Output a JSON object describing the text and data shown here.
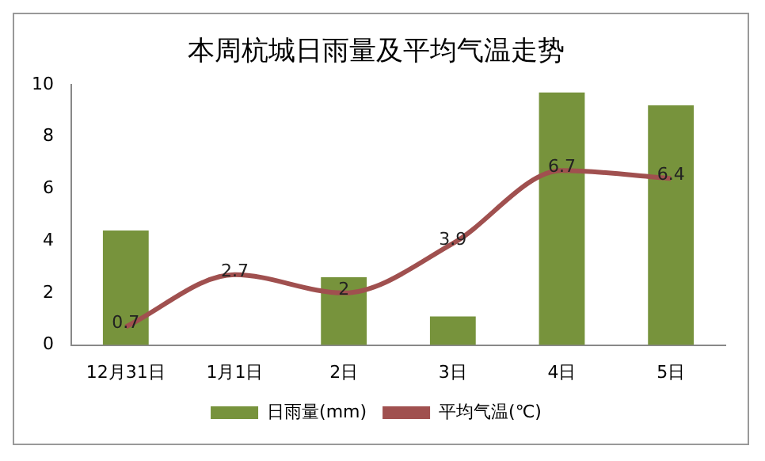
{
  "chart_data": {
    "type": "bar",
    "title": "本周杭城日雨量及平均气温走势",
    "categories": [
      "12月31日",
      "1月1日",
      "2日",
      "3日",
      "4日",
      "5日"
    ],
    "series": [
      {
        "name": "日雨量(mm)",
        "color": "#77933c",
        "values": [
          4.4,
          null,
          2.6,
          1.1,
          9.7,
          9.2
        ]
      },
      {
        "name": "平均气温(℃)",
        "type": "line",
        "color": "#a0504f",
        "values": [
          0.7,
          2.7,
          2,
          3.9,
          6.7,
          6.4
        ],
        "value_labels": [
          "0.7",
          "2.7",
          "2",
          "3.9",
          "6.7",
          "6.4"
        ]
      }
    ],
    "ylim": [
      0,
      10
    ],
    "yticks": [
      0,
      2,
      4,
      6,
      8,
      10
    ],
    "grid": false,
    "legend": "bottom",
    "marker": "none"
  }
}
